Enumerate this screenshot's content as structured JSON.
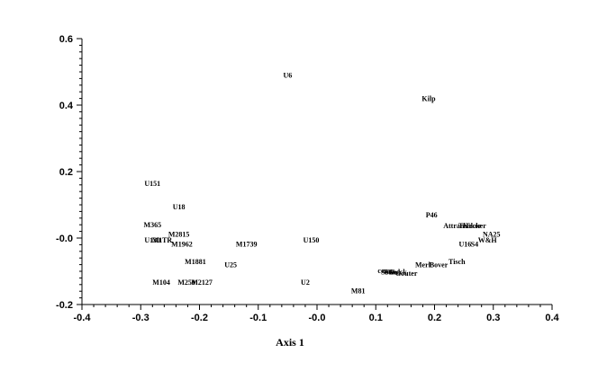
{
  "chart_data": {
    "type": "scatter",
    "title": "",
    "xlabel": "Axis 1",
    "ylabel": "",
    "xlim": [
      -0.4,
      0.4
    ],
    "ylim": [
      -0.2,
      0.6
    ],
    "xticks": [
      -0.4,
      -0.3,
      -0.2,
      -0.1,
      0.0,
      0.1,
      0.2,
      0.3,
      0.4
    ],
    "xtick_labels": [
      "-0.4",
      "-0.3",
      "-0.2",
      "-0.1",
      "-0.0",
      "0.1",
      "0.2",
      "0.3",
      "0.4"
    ],
    "yticks": [
      -0.2,
      0.0,
      0.2,
      0.4,
      0.6
    ],
    "ytick_labels": [
      "-0.2",
      "-0.0",
      "0.2",
      "0.4",
      "0.6"
    ],
    "grid": false,
    "marker": "label-only",
    "points": [
      {
        "label": "U6",
        "x": -0.05,
        "y": 0.49
      },
      {
        "label": "Kilp",
        "x": 0.19,
        "y": 0.42
      },
      {
        "label": "U151",
        "x": -0.28,
        "y": 0.165
      },
      {
        "label": "U18",
        "x": -0.235,
        "y": 0.095
      },
      {
        "label": "P46",
        "x": 0.195,
        "y": 0.07
      },
      {
        "label": "M365",
        "x": -0.28,
        "y": 0.04
      },
      {
        "label": "Attrans",
        "x": 0.235,
        "y": 0.038
      },
      {
        "label": "Thaker",
        "x": 0.26,
        "y": 0.038
      },
      {
        "label": "Tecker",
        "x": 0.27,
        "y": 0.038
      },
      {
        "label": "M2815",
        "x": -0.235,
        "y": 0.012
      },
      {
        "label": "NA25",
        "x": 0.297,
        "y": 0.012
      },
      {
        "label": "U150",
        "x": -0.01,
        "y": -0.005
      },
      {
        "label": "U130",
        "x": -0.28,
        "y": -0.005
      },
      {
        "label": "M1",
        "x": -0.272,
        "y": -0.005
      },
      {
        "label": "TR",
        "x": -0.255,
        "y": -0.005
      },
      {
        "label": "W&H",
        "x": 0.29,
        "y": -0.005
      },
      {
        "label": "M1962",
        "x": -0.23,
        "y": -0.018
      },
      {
        "label": "U16",
        "x": 0.252,
        "y": -0.018
      },
      {
        "label": "S4",
        "x": 0.268,
        "y": -0.018
      },
      {
        "label": "M1739",
        "x": -0.12,
        "y": -0.018
      },
      {
        "label": "M1881",
        "x": -0.207,
        "y": -0.07
      },
      {
        "label": "Tisch",
        "x": 0.238,
        "y": -0.07
      },
      {
        "label": "U25",
        "x": -0.147,
        "y": -0.08
      },
      {
        "label": "Merl",
        "x": 0.18,
        "y": -0.08
      },
      {
        "label": "Bover",
        "x": 0.207,
        "y": -0.08
      },
      {
        "label": "cenus",
        "x": 0.118,
        "y": -0.097
      },
      {
        "label": "Sow",
        "x": 0.12,
        "y": -0.102
      },
      {
        "label": "Sand",
        "x": 0.128,
        "y": -0.102
      },
      {
        "label": "Seeck",
        "x": 0.138,
        "y": -0.102
      },
      {
        "label": "Gouter",
        "x": 0.152,
        "y": -0.105
      },
      {
        "label": "M104",
        "x": -0.265,
        "y": -0.133
      },
      {
        "label": "M250",
        "x": -0.222,
        "y": -0.133
      },
      {
        "label": "M2127",
        "x": -0.196,
        "y": -0.133
      },
      {
        "label": "U2",
        "x": -0.02,
        "y": -0.133
      },
      {
        "label": "M81",
        "x": 0.07,
        "y": -0.158
      }
    ]
  }
}
